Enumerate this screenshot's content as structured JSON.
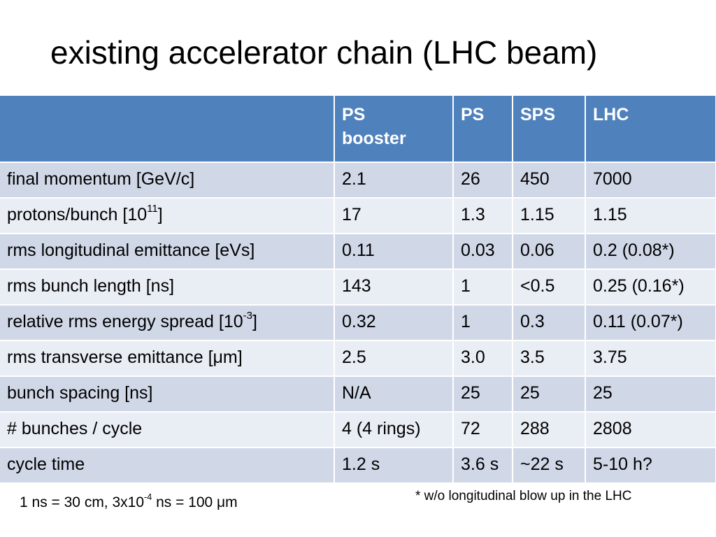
{
  "slide": {
    "title": "existing accelerator chain (LHC beam)"
  },
  "table": {
    "header_empty": "",
    "columns": [
      "PS",
      "PS",
      "SPS",
      "LHC"
    ],
    "ps_booster_second_line": "booster",
    "rows": [
      {
        "label_parts": [
          "final momentum [GeV/c]"
        ],
        "values": [
          "2.1",
          "26",
          "450",
          "7000"
        ]
      },
      {
        "label_parts": [
          "protons/bunch [10",
          "11",
          "]"
        ],
        "values": [
          "17",
          "1.3",
          "1.15",
          "1.15"
        ]
      },
      {
        "label_parts": [
          "rms longitudinal emittance [eVs]"
        ],
        "values": [
          "0.11",
          "0.03",
          "0.06",
          "0.2 (0.08*)"
        ]
      },
      {
        "label_parts": [
          "rms bunch length [ns]"
        ],
        "values": [
          "143",
          "1",
          "<0.5",
          "0.25 (0.16*)"
        ]
      },
      {
        "label_parts": [
          "relative rms energy spread [10",
          "-3",
          "]"
        ],
        "values": [
          "0.32",
          "1",
          "0.3",
          "0.11 (0.07*)"
        ]
      },
      {
        "label_parts": [
          "rms transverse emittance [μm]"
        ],
        "values": [
          "2.5",
          "3.0",
          "3.5",
          "3.75"
        ]
      },
      {
        "label_parts": [
          "bunch spacing [ns]"
        ],
        "values": [
          "N/A",
          "25",
          "25",
          "25"
        ]
      },
      {
        "label_parts": [
          "# bunches / cycle"
        ],
        "values": [
          "4 (4 rings)",
          "72",
          "288",
          "2808"
        ]
      },
      {
        "label_parts": [
          "cycle time"
        ],
        "values": [
          "1.2 s",
          "3.6 s",
          "~22 s",
          "5-10 h?"
        ]
      }
    ]
  },
  "footnotes": {
    "left_parts": [
      "1 ns = 30 cm,  3x10",
      "-4",
      " ns = 100 μm"
    ],
    "right": "* w/o longitudinal blow up in the LHC"
  },
  "colors": {
    "header_bg": "#4f81bd",
    "band_dark": "#d0d8e8",
    "band_light": "#e9edf4",
    "header_text": "#ffffff"
  }
}
